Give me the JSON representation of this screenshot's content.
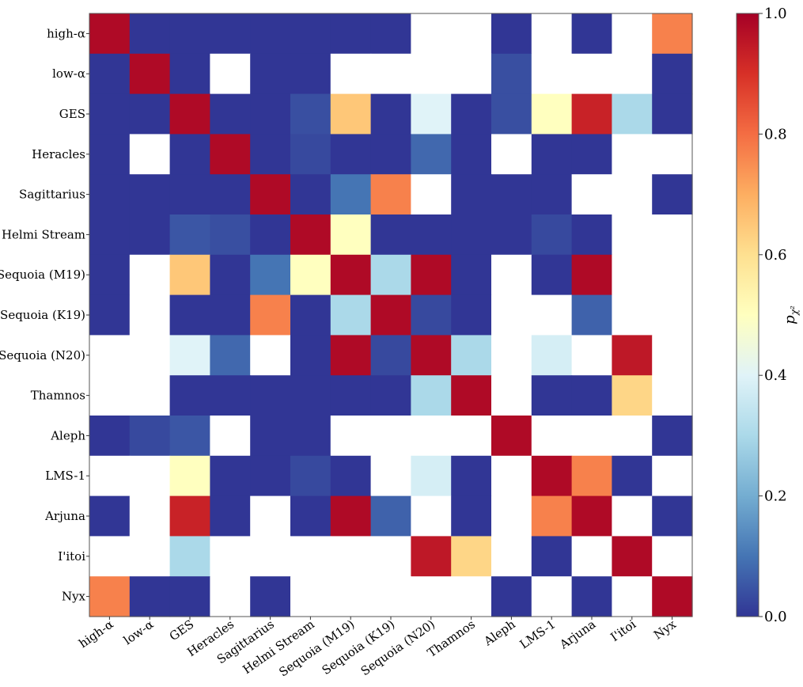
{
  "chart_data": {
    "type": "heatmap",
    "title": "",
    "xlabel": "",
    "ylabel": "",
    "categories": [
      "high-α",
      "low-α",
      "GES",
      "Heracles",
      "Sagittarius",
      "Helmi Stream",
      "Sequoia (M19)",
      "Sequoia (K19)",
      "Sequoia (N20)",
      "Thamnos",
      "Aleph",
      "LMS-1",
      "Arjuna",
      "I'itoi",
      "Nyx"
    ],
    "note_null": "null = white cell (no value shown)",
    "values": [
      [
        0.98,
        0.0,
        0.0,
        0.0,
        0.0,
        0.0,
        0.0,
        0.0,
        null,
        null,
        0.0,
        null,
        0.0,
        null,
        0.77
      ],
      [
        0.0,
        0.98,
        0.0,
        null,
        0.0,
        0.0,
        null,
        null,
        null,
        null,
        0.04,
        null,
        null,
        null,
        0.0
      ],
      [
        0.0,
        0.0,
        0.98,
        0.0,
        0.0,
        0.04,
        0.65,
        0.0,
        0.4,
        0.0,
        0.04,
        0.5,
        0.93,
        0.3,
        0.0
      ],
      [
        0.0,
        null,
        0.0,
        0.98,
        0.0,
        0.03,
        0.0,
        0.0,
        0.08,
        0.0,
        null,
        0.0,
        0.0,
        null,
        null
      ],
      [
        0.0,
        0.0,
        0.0,
        0.0,
        0.98,
        0.0,
        0.1,
        0.77,
        null,
        0.0,
        0.0,
        0.0,
        null,
        null,
        0.0
      ],
      [
        0.0,
        0.0,
        0.05,
        0.04,
        0.0,
        0.98,
        0.5,
        0.0,
        0.0,
        0.0,
        0.0,
        0.03,
        0.0,
        null,
        null
      ],
      [
        0.0,
        null,
        0.65,
        0.0,
        0.1,
        0.5,
        0.98,
        0.3,
        0.98,
        0.0,
        null,
        0.0,
        0.98,
        null,
        null
      ],
      [
        0.0,
        null,
        0.0,
        0.0,
        0.77,
        0.0,
        0.3,
        0.98,
        0.03,
        0.0,
        null,
        null,
        0.07,
        null,
        null
      ],
      [
        null,
        null,
        0.4,
        0.08,
        null,
        0.0,
        0.98,
        0.03,
        0.98,
        0.3,
        null,
        0.38,
        null,
        0.95,
        null
      ],
      [
        null,
        null,
        0.0,
        0.0,
        0.0,
        0.0,
        0.0,
        0.0,
        0.3,
        0.98,
        null,
        0.0,
        0.0,
        0.62,
        null
      ],
      [
        0.0,
        0.03,
        0.05,
        null,
        0.0,
        0.0,
        null,
        null,
        null,
        null,
        0.98,
        null,
        null,
        null,
        0.0
      ],
      [
        null,
        null,
        0.5,
        0.0,
        0.0,
        0.03,
        0.0,
        null,
        0.38,
        0.0,
        null,
        0.98,
        0.77,
        0.0,
        null
      ],
      [
        0.0,
        null,
        0.93,
        0.0,
        null,
        0.0,
        0.98,
        0.07,
        null,
        0.0,
        null,
        0.77,
        0.98,
        null,
        0.0
      ],
      [
        null,
        null,
        0.3,
        null,
        null,
        null,
        null,
        null,
        0.95,
        0.62,
        null,
        0.0,
        null,
        0.98,
        null
      ],
      [
        0.77,
        0.0,
        0.0,
        null,
        0.0,
        null,
        null,
        null,
        null,
        null,
        0.0,
        null,
        0.0,
        null,
        0.98
      ]
    ],
    "colorbar": {
      "label": "p_χ²",
      "label_text": "p",
      "label_sub": "χ²",
      "range": [
        0.0,
        1.0
      ],
      "ticks": [
        0.0,
        0.2,
        0.4,
        0.6,
        0.8,
        1.0
      ],
      "tick_labels": [
        "0.0",
        "0.2",
        "0.4",
        "0.6",
        "0.8",
        "1.0"
      ],
      "colormap": "RdYlBu_r"
    },
    "grid": false
  }
}
